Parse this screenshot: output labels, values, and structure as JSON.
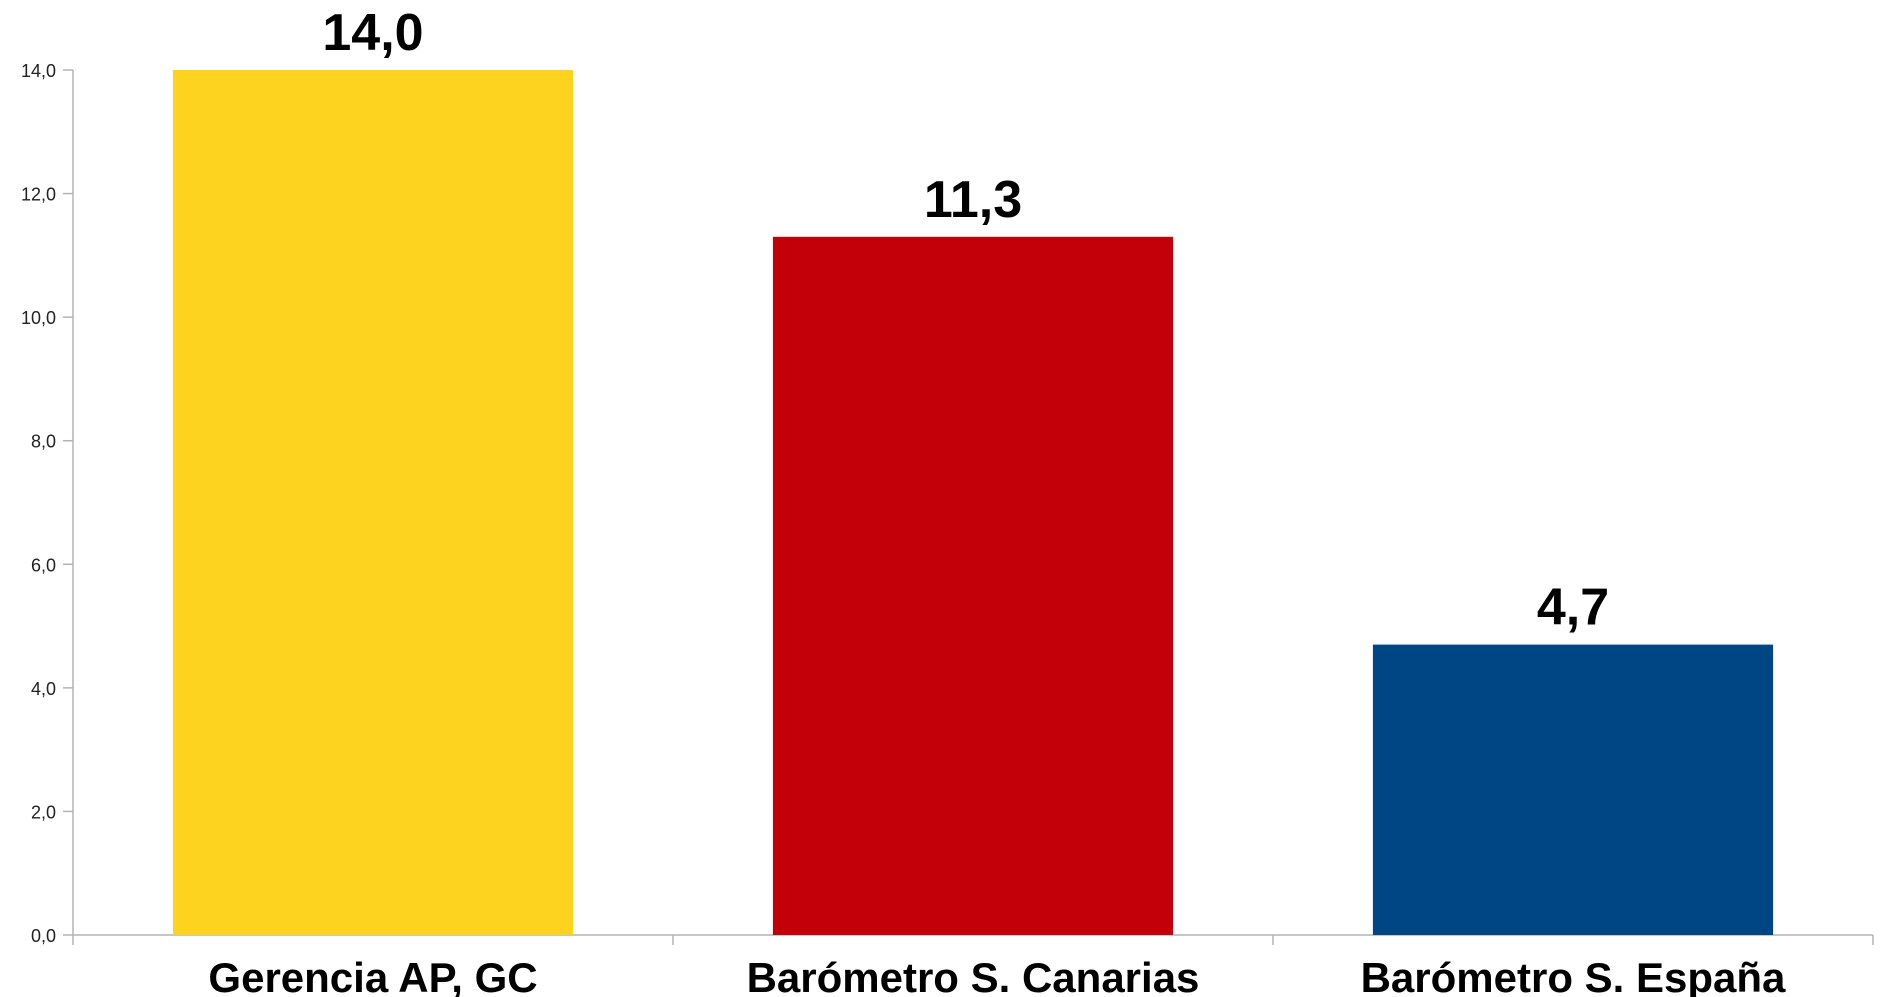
{
  "chart_data": {
    "type": "bar",
    "categories": [
      "Gerencia AP, GC",
      "Barómetro S. Canarias",
      "Barómetro S. España"
    ],
    "values": [
      14.0,
      11.3,
      4.7
    ],
    "value_labels": [
      "14,0",
      "11,3",
      "4,7"
    ],
    "colors": [
      "#fdd320",
      "#c3000a",
      "#004584"
    ],
    "ylim": [
      0,
      14
    ],
    "yticks": [
      0,
      2,
      4,
      6,
      8,
      10,
      12,
      14
    ],
    "ytick_labels": [
      "0,0",
      "2,0",
      "4,0",
      "6,0",
      "8,0",
      "10,0",
      "12,0",
      "14,0"
    ],
    "grid": false,
    "legend": "none",
    "title": "",
    "xlabel": "",
    "ylabel": ""
  }
}
